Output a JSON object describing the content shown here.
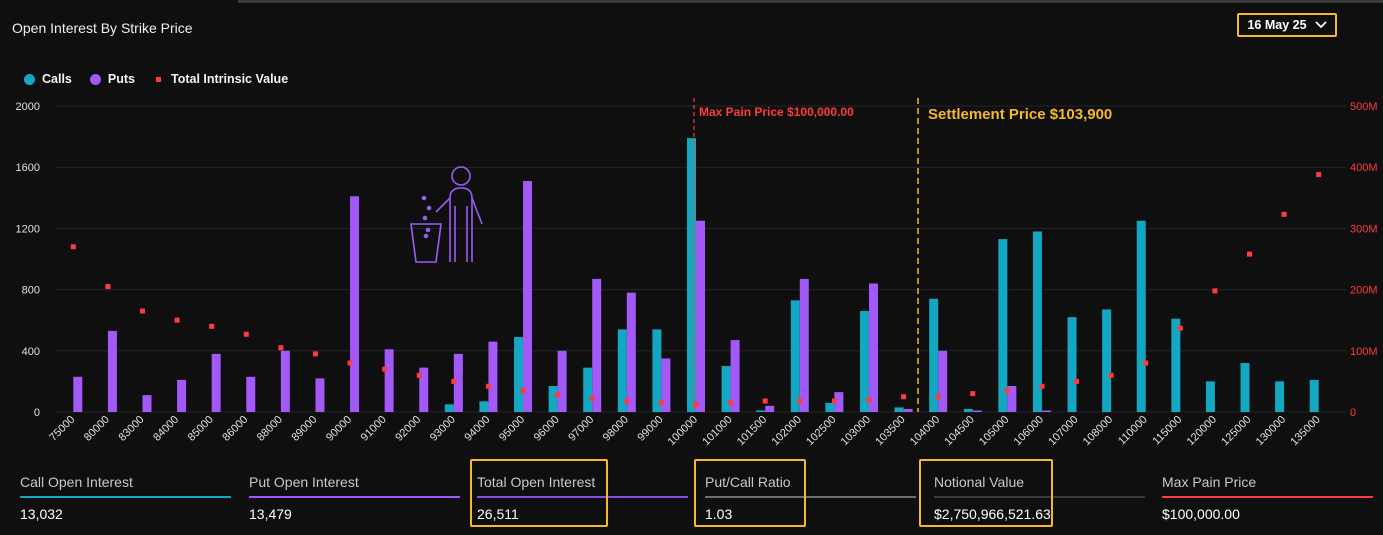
{
  "header": {
    "title": "Open Interest By Strike Price",
    "date_label": "16 May 25"
  },
  "legend": {
    "calls": "Calls",
    "puts": "Puts",
    "tiv": "Total Intrinsic Value"
  },
  "colors": {
    "calls": "#14a7c2",
    "puts": "#a259f7",
    "tiv": "#ff3b3b",
    "settlement": "#f5b82e",
    "maxpain": "#ff3b3b"
  },
  "icons": {
    "trash": "trash-person-icon",
    "chevron": "chevron-down-icon"
  },
  "annotations": {
    "max_pain": "Max Pain Price $100,000.00",
    "settlement": "Settlement Price $103,900"
  },
  "chart_data": {
    "type": "bar",
    "categories": [
      "75000",
      "80000",
      "83000",
      "84000",
      "85000",
      "86000",
      "88000",
      "89000",
      "90000",
      "91000",
      "92000",
      "93000",
      "94000",
      "95000",
      "96000",
      "97000",
      "98000",
      "99000",
      "100000",
      "101000",
      "101500",
      "102000",
      "102500",
      "103000",
      "103500",
      "104000",
      "104500",
      "105000",
      "106000",
      "107000",
      "108000",
      "110000",
      "115000",
      "120000",
      "125000",
      "130000",
      "135000"
    ],
    "series": [
      {
        "name": "Calls",
        "axis": "left",
        "values": [
          0,
          0,
          0,
          0,
          0,
          0,
          0,
          0,
          0,
          0,
          0,
          50,
          70,
          490,
          170,
          290,
          540,
          540,
          1790,
          300,
          10,
          730,
          60,
          660,
          30,
          740,
          20,
          1130,
          1180,
          620,
          670,
          1250,
          610,
          200,
          320,
          200,
          210
        ]
      },
      {
        "name": "Puts",
        "axis": "left",
        "values": [
          230,
          530,
          110,
          210,
          380,
          230,
          400,
          220,
          1410,
          410,
          290,
          380,
          460,
          1510,
          400,
          870,
          780,
          350,
          1250,
          470,
          40,
          870,
          130,
          840,
          20,
          400,
          10,
          170,
          10,
          0,
          0,
          0,
          0,
          0,
          0,
          0,
          0
        ]
      },
      {
        "name": "Total Intrinsic Value",
        "axis": "right",
        "values": [
          270,
          205,
          165,
          150,
          140,
          127,
          105,
          95,
          80,
          70,
          60,
          50,
          42,
          35,
          28,
          22,
          18,
          15,
          12,
          15,
          18,
          18,
          18,
          20,
          25,
          25,
          30,
          35,
          42,
          50,
          60,
          80,
          137,
          198,
          258,
          323,
          388
        ]
      }
    ],
    "yleft": {
      "ticks": [
        "0",
        "400",
        "800",
        "1200",
        "1600",
        "2000"
      ],
      "lim": [
        0,
        2000
      ]
    },
    "yright": {
      "ticks": [
        "0",
        "100M",
        "200M",
        "300M",
        "400M",
        "500M"
      ],
      "lim": [
        0,
        500
      ],
      "unit": "M"
    },
    "grid": true,
    "legend_position": "top-left"
  },
  "stats": [
    {
      "label": "Call Open Interest",
      "value": "13,032"
    },
    {
      "label": "Put Open Interest",
      "value": "13,479"
    },
    {
      "label": "Total Open Interest",
      "value": "26,511"
    },
    {
      "label": "Put/Call Ratio",
      "value": "1.03"
    },
    {
      "label": "Notional Value",
      "value": "$2,750,966,521.63"
    },
    {
      "label": "Max Pain Price",
      "value": "$100,000.00"
    }
  ]
}
